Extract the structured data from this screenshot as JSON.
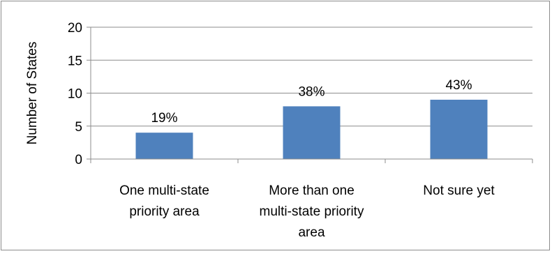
{
  "chart_data": {
    "type": "bar",
    "title": "",
    "xlabel": "",
    "ylabel": "Number of States",
    "ylim": [
      0,
      20
    ],
    "yticks": [
      0,
      5,
      10,
      15,
      20
    ],
    "grid": true,
    "categories": [
      [
        "One multi-state",
        "priority area"
      ],
      [
        "More than one",
        "multi-state priority",
        "area"
      ],
      [
        "Not sure yet"
      ]
    ],
    "values": [
      4,
      8,
      9
    ],
    "data_labels": [
      "19%",
      "38%",
      "43%"
    ],
    "bar_color": "#4f81bd"
  }
}
